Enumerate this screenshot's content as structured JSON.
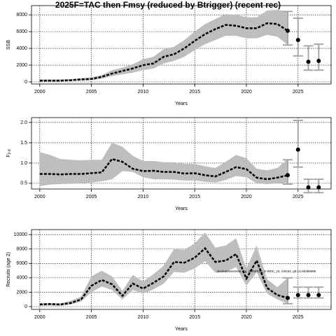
{
  "chart_data": [
    {
      "type": "line",
      "title": "2025F=TAC then Fmsy (reduced by Btrigger) (recent rec)",
      "ylabel": "SSB",
      "xlabel": "Years",
      "x": [
        2000,
        2001,
        2002,
        2003,
        2004,
        2005,
        2006,
        2007,
        2008,
        2009,
        2010,
        2011,
        2012,
        2013,
        2014,
        2015,
        2016,
        2017,
        2018,
        2019,
        2020,
        2021,
        2022,
        2023,
        2024
      ],
      "values": [
        150,
        150,
        150,
        200,
        300,
        350,
        600,
        1000,
        1300,
        1600,
        2000,
        2200,
        3000,
        3300,
        4000,
        4900,
        5700,
        6300,
        6800,
        6700,
        6400,
        6400,
        7000,
        6900,
        6100
      ],
      "lower": [
        50,
        50,
        50,
        100,
        150,
        200,
        400,
        700,
        900,
        1100,
        1400,
        1600,
        2200,
        2500,
        3000,
        3800,
        4500,
        5000,
        5500,
        5500,
        5200,
        5200,
        5600,
        5400,
        4400
      ],
      "upper": [
        300,
        300,
        300,
        350,
        450,
        550,
        800,
        1400,
        1700,
        2100,
        2700,
        3000,
        3900,
        4200,
        5000,
        6000,
        6900,
        7500,
        8100,
        8000,
        7700,
        7700,
        8500,
        8600,
        8400
      ],
      "projection": {
        "x": [
          2024,
          2025,
          2026,
          2027
        ],
        "values": [
          6100,
          5000,
          2400,
          2500
        ],
        "lower": [
          4400,
          3100,
          1400,
          1400
        ],
        "upper": [
          8400,
          7600,
          4300,
          4500
        ]
      },
      "band_color": "#bebebe",
      "line_color": "#000000",
      "proj_color": "#a8a8a8",
      "xlim": [
        1999.2,
        2028.2
      ],
      "xticks": [
        2000,
        2005,
        2010,
        2015,
        2020,
        2025
      ],
      "ylim": [
        -250,
        9100
      ],
      "yticks": [
        0,
        2000,
        4000,
        6000,
        8000
      ],
      "grid": true
    },
    {
      "type": "line",
      "ylabel": "F",
      "ylabel_sub": "2-8",
      "xlabel": "Years",
      "x": [
        2000,
        2001,
        2002,
        2003,
        2004,
        2005,
        2006,
        2007,
        2008,
        2009,
        2010,
        2011,
        2012,
        2013,
        2014,
        2015,
        2016,
        2017,
        2018,
        2019,
        2020,
        2021,
        2022,
        2023,
        2024
      ],
      "values": [
        0.73,
        0.73,
        0.72,
        0.73,
        0.73,
        0.75,
        0.77,
        1.1,
        1.03,
        0.86,
        0.8,
        0.81,
        0.78,
        0.78,
        0.74,
        0.75,
        0.7,
        0.67,
        0.78,
        0.9,
        0.85,
        0.64,
        0.6,
        0.64,
        0.7
      ],
      "lower": [
        0.43,
        0.47,
        0.48,
        0.49,
        0.5,
        0.52,
        0.55,
        0.6,
        0.8,
        0.78,
        0.65,
        0.6,
        0.6,
        0.59,
        0.57,
        0.57,
        0.54,
        0.52,
        0.58,
        0.68,
        0.65,
        0.5,
        0.48,
        0.5,
        0.52
      ],
      "upper": [
        1.27,
        1.2,
        1.1,
        1.08,
        1.07,
        1.08,
        1.08,
        1.5,
        1.4,
        1.18,
        1.05,
        1.05,
        1.02,
        1.02,
        0.98,
        0.98,
        0.92,
        0.88,
        1.03,
        1.2,
        1.12,
        0.86,
        0.82,
        0.88,
        1.1
      ],
      "projection": {
        "x": [
          2024,
          2025,
          2026,
          2027
        ],
        "values": [
          0.7,
          1.33,
          0.4,
          0.4
        ],
        "lower": [
          0.48,
          0.9,
          0.27,
          0.27
        ],
        "upper": [
          1.08,
          2.05,
          0.6,
          0.6
        ]
      },
      "band_color": "#bebebe",
      "line_color": "#000000",
      "proj_color": "#a8a8a8",
      "xlim": [
        1999.2,
        2028.2
      ],
      "xticks": [
        2000,
        2005,
        2010,
        2015,
        2020,
        2025
      ],
      "ylim": [
        0.36,
        2.12
      ],
      "yticks": [
        {
          "value": 0.5,
          "label": "0.5"
        },
        {
          "value": 1,
          "label": "1.0"
        },
        {
          "value": 1.5,
          "label": "1.5"
        },
        {
          "value": 2,
          "label": "2.0"
        }
      ],
      "grid": true
    },
    {
      "type": "line",
      "ylabel": "Recruits (age 2)",
      "xlabel": "Years",
      "annotation": "stockassessment.org, NWWS25_S-WSC_v2, r19152, git:1cc464b8096",
      "x": [
        2000,
        2001,
        2002,
        2003,
        2004,
        2005,
        2006,
        2007,
        2008,
        2009,
        2010,
        2011,
        2012,
        2013,
        2014,
        2015,
        2016,
        2017,
        2018,
        2019,
        2020,
        2021,
        2022,
        2023,
        2024
      ],
      "values": [
        300,
        350,
        300,
        500,
        1000,
        2900,
        3700,
        3100,
        1500,
        3200,
        2500,
        3300,
        4200,
        6200,
        6100,
        6800,
        8100,
        6200,
        6400,
        7300,
        3900,
        6400,
        2600,
        1600,
        1200
      ],
      "lower": [
        100,
        150,
        100,
        300,
        700,
        2000,
        2800,
        2300,
        1000,
        2300,
        1800,
        2400,
        3200,
        4800,
        4700,
        5300,
        6300,
        4700,
        4800,
        5500,
        2900,
        4800,
        1800,
        1000,
        400
      ],
      "upper": [
        500,
        500,
        450,
        800,
        1400,
        4200,
        5000,
        4200,
        2200,
        4400,
        3500,
        4500,
        5700,
        8000,
        7900,
        8800,
        10300,
        8200,
        8500,
        9500,
        5300,
        8500,
        3800,
        2700,
        4000
      ],
      "projection": {
        "x": [
          2024,
          2025,
          2026,
          2027
        ],
        "values": [
          1200,
          1600,
          1600,
          1600
        ],
        "lower": [
          400,
          1200,
          1200,
          1200
        ],
        "upper": [
          4000,
          2700,
          2700,
          2700
        ]
      },
      "band_color": "#bebebe",
      "line_color": "#000000",
      "proj_color": "#a8a8a8",
      "xlim": [
        1999.2,
        2028.2
      ],
      "xticks": [
        2000,
        2005,
        2010,
        2015,
        2020,
        2025
      ],
      "ylim": [
        -390,
        10700
      ],
      "yticks": [
        0,
        2000,
        4000,
        6000,
        8000,
        10000
      ],
      "grid": true
    }
  ]
}
